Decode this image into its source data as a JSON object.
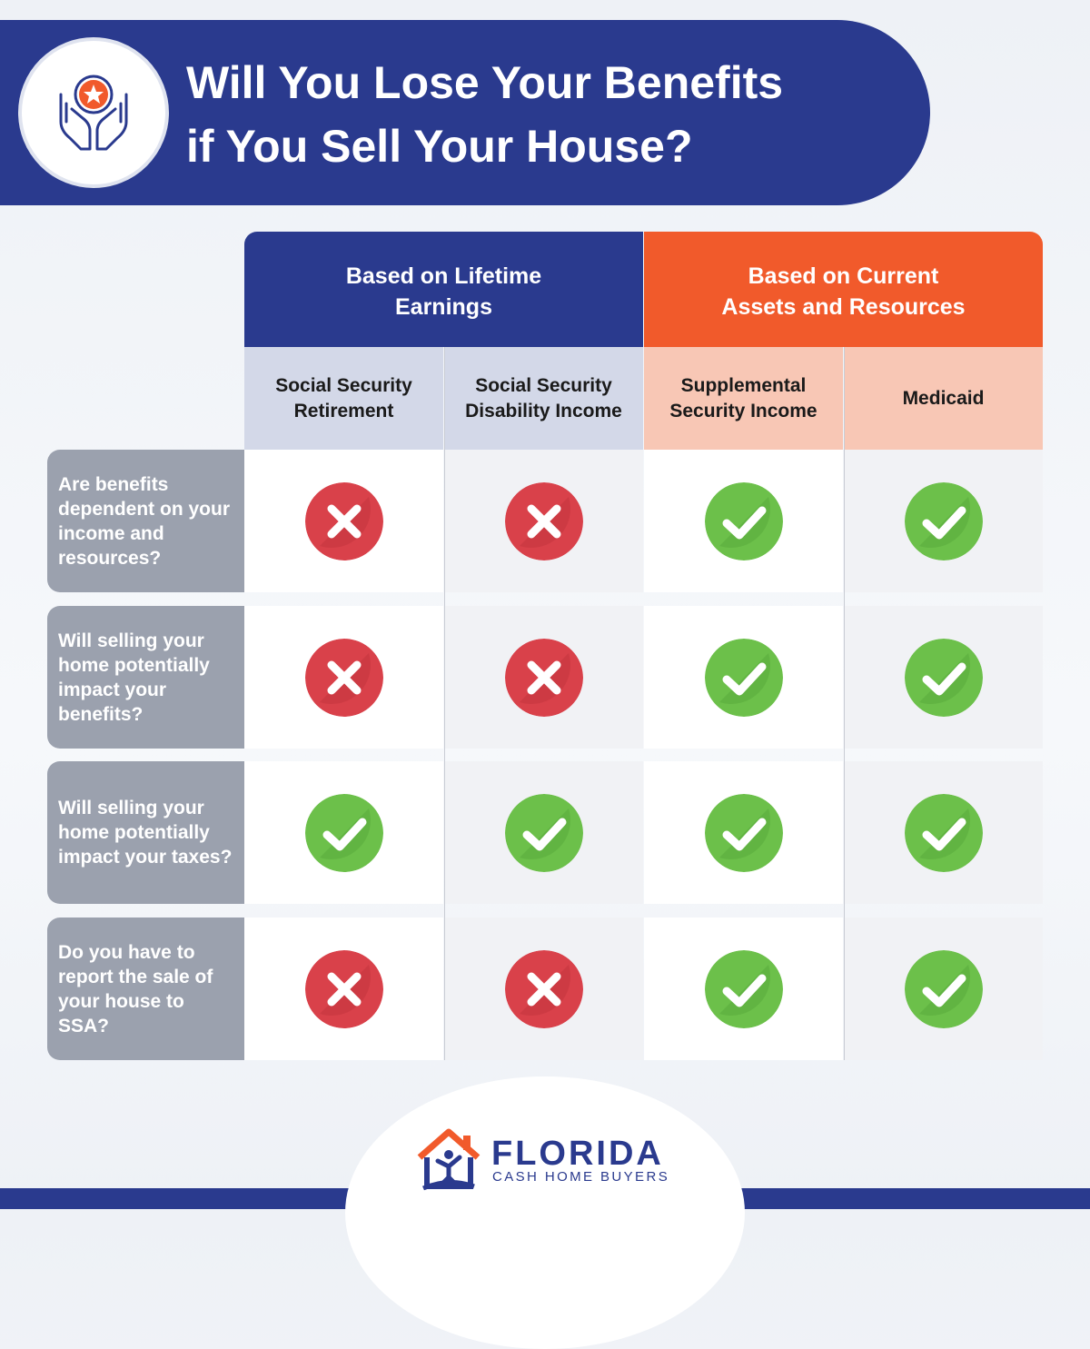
{
  "header": {
    "title_line1": "Will You Lose Your Benefits",
    "title_line2": "if You Sell Your House?",
    "icon": "hands-star-icon"
  },
  "groups": [
    {
      "line1": "Based on Lifetime",
      "line2": "Earnings",
      "color": "#2a3a8e"
    },
    {
      "line1": "Based on Current",
      "line2": "Assets and Resources",
      "color": "#f15a2b"
    }
  ],
  "columns": [
    {
      "line1": "Social Security",
      "line2": "Retirement"
    },
    {
      "line1": "Social Security",
      "line2": "Disability Income"
    },
    {
      "line1": "Supplemental",
      "line2": "Security Income"
    },
    {
      "line1": "Medicaid",
      "line2": ""
    }
  ],
  "rows": [
    {
      "question": "Are benefits dependent on your income and resources?",
      "answers": [
        "no",
        "no",
        "yes",
        "yes"
      ]
    },
    {
      "question": "Will selling your home potentially impact your benefits?",
      "answers": [
        "no",
        "no",
        "yes",
        "yes"
      ]
    },
    {
      "question": "Will selling your home potentially impact your taxes?",
      "answers": [
        "yes",
        "yes",
        "yes",
        "yes"
      ]
    },
    {
      "question": "Do you have to report the sale of your house to SSA?",
      "answers": [
        "no",
        "no",
        "yes",
        "yes"
      ]
    }
  ],
  "logo": {
    "name": "FLORIDA",
    "sub": "CASH HOME BUYERS"
  },
  "colors": {
    "yes": "#6cc04a",
    "no": "#d9414a",
    "navy": "#2a3a8e",
    "orange": "#f15a2b"
  }
}
